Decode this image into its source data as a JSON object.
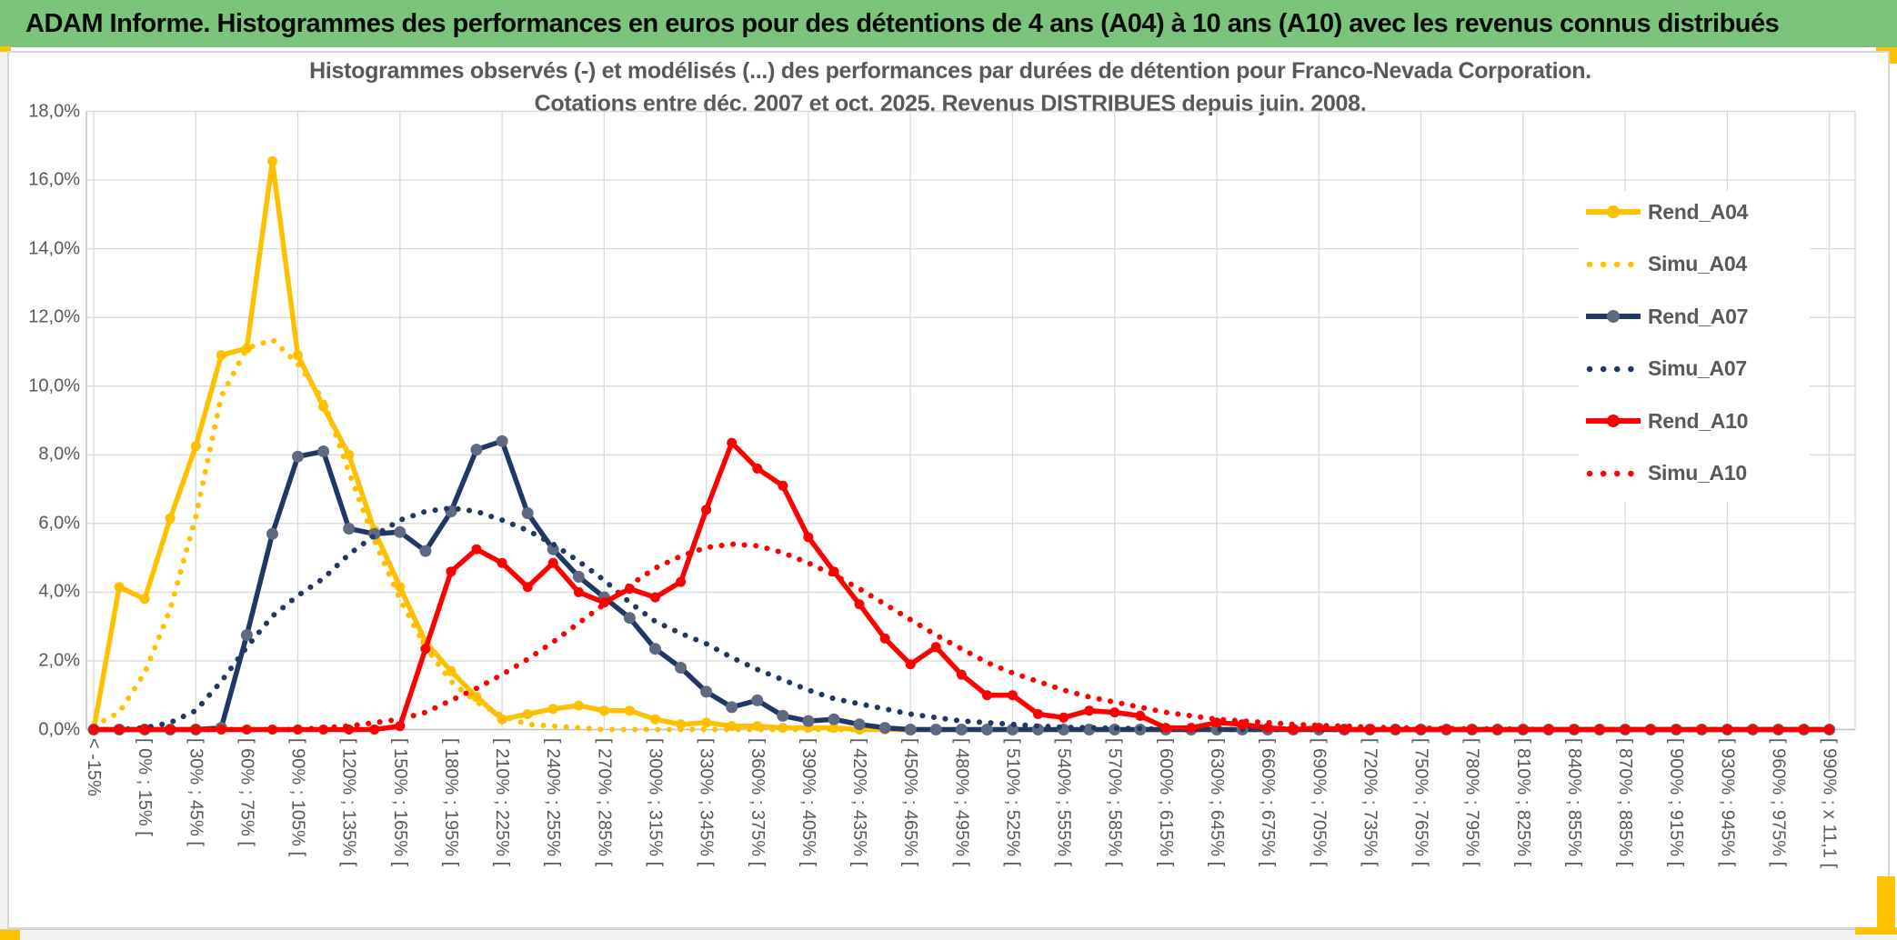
{
  "header": {
    "title": "ADAM Informe. Histogrammes des performances en euros pour des détentions de 4 ans (A04) à 10 ans (A10) avec les revenus connus distribués",
    "bar_color": "#7BC47C",
    "accent_color": "#FFC000"
  },
  "chart": {
    "title_line1": "Histogrammes observés (-) et modélisés (...) des performances par durées de détention pour Franco-Nevada Corporation.",
    "title_line2": "Cotations entre déc. 2007 et oct. 2025. Revenus DISTRIBUES depuis juin. 2008.",
    "text_color": "#595959",
    "grid_color": "#D9D9D9"
  },
  "chart_data": {
    "type": "line",
    "title": "Histogrammes observés (-) et modélisés (...) des performances par durées de détention pour Franco-Nevada Corporation. Cotations entre déc. 2007 et oct. 2025. Revenus DISTRIBUES depuis juin. 2008.",
    "xlabel": "",
    "ylabel": "",
    "ylim": [
      0,
      18
    ],
    "y_tick_step_pct": 2,
    "grid": true,
    "legend_position": "inside-top-right",
    "y_tick_labels": [
      "0,0%",
      "2,0%",
      "4,0%",
      "6,0%",
      "8,0%",
      "10,0%",
      "12,0%",
      "14,0%",
      "16,0%",
      "18,0%"
    ],
    "x_tick_labels": [
      "< -15%",
      "[ 0% ; 15% [",
      "[ 30% ; 45% [",
      "[ 60% ; 75% [",
      "[ 90% ; 105% [",
      "[ 120% ; 135% [",
      "[ 150% ; 165% [",
      "[ 180% ; 195% [",
      "[ 210% ; 225% [",
      "[ 240% ; 255% [",
      "[ 270% ; 285% [",
      "[ 300% ; 315% [",
      "[ 330% ; 345% [",
      "[ 360% ; 375% [",
      "[ 390% ; 405% [",
      "[ 420% ; 435% [",
      "[ 450% ; 465% [",
      "[ 480% ; 495% [",
      "[ 510% ; 525% [",
      "[ 540% ; 555% [",
      "[ 570% ; 585% [",
      "[ 600% ; 615% [",
      "[ 630% ; 645% [",
      "[ 660% ; 675% [",
      "[ 690% ; 705% [",
      "[ 720% ; 735% [",
      "[ 750% ; 765% [",
      "[ 780% ; 795% [",
      "[ 810% ; 825% [",
      "[ 840% ; 855% [",
      "[ 870% ; 885% [",
      "[ 900% ; 915% [",
      "[ 930% ; 945% [",
      "[ 960% ; 975% [",
      "[ 990% ; x 11,1 ["
    ],
    "x_labels_every_other_bin": true,
    "n_bins": 69,
    "series": [
      {
        "name": "Rend_A04",
        "style": "solid",
        "color": "#FFC000",
        "marker_color": "#FFC000",
        "values": [
          0,
          4.15,
          3.8,
          6.15,
          8.25,
          10.9,
          11.1,
          16.55,
          10.9,
          9.4,
          8.0,
          5.8,
          4.15,
          2.55,
          1.7,
          0.95,
          0.3,
          0.45,
          0.6,
          0.7,
          0.55,
          0.55,
          0.3,
          0.15,
          0.2,
          0.1,
          0.1,
          0.05,
          0.05,
          0.05,
          0,
          0,
          0,
          0,
          0,
          0,
          0,
          0,
          0,
          0,
          0,
          0,
          0,
          0,
          0,
          0,
          0,
          0,
          0,
          0,
          0,
          0,
          0,
          0,
          0,
          0,
          0,
          0,
          0,
          0,
          0,
          0,
          0,
          0,
          0,
          0,
          0,
          0,
          0
        ]
      },
      {
        "name": "Simu_A04",
        "style": "dotted",
        "color": "#FFC000",
        "values": [
          0.1,
          0.5,
          1.65,
          3.5,
          6.2,
          9.7,
          11.1,
          11.35,
          10.65,
          9.6,
          7.5,
          5.5,
          3.8,
          2.4,
          1.4,
          0.8,
          0.4,
          0.15,
          0.1,
          0.05,
          0,
          0,
          0,
          0,
          0,
          0,
          0,
          0,
          0,
          0,
          0,
          0,
          0,
          0,
          0,
          0,
          0,
          0,
          0,
          0,
          0,
          0,
          0,
          0,
          0,
          0,
          0,
          0,
          0,
          0,
          0,
          0,
          0,
          0,
          0,
          0,
          0,
          0,
          0,
          0,
          0,
          0,
          0,
          0,
          0,
          0,
          0,
          0,
          0
        ]
      },
      {
        "name": "Rend_A07",
        "style": "solid",
        "color": "#1F3864",
        "marker_color": "#5E6A82",
        "values": [
          0,
          0,
          0,
          0,
          0,
          0.05,
          2.75,
          5.7,
          7.95,
          8.1,
          5.85,
          5.7,
          5.75,
          5.2,
          6.35,
          8.15,
          8.4,
          6.3,
          5.25,
          4.45,
          3.85,
          3.25,
          2.35,
          1.8,
          1.1,
          0.65,
          0.85,
          0.4,
          0.25,
          0.3,
          0.15,
          0.05,
          0,
          0,
          0,
          0,
          0,
          0,
          0,
          0,
          0,
          0,
          0,
          0,
          0,
          0,
          0,
          0,
          0,
          0,
          0,
          0,
          0,
          0,
          0,
          0,
          0,
          0,
          0,
          0,
          0,
          0,
          0,
          0,
          0,
          0,
          0,
          0,
          0
        ]
      },
      {
        "name": "Simu_A07",
        "style": "dotted",
        "color": "#1F3864",
        "values": [
          0,
          0,
          0.05,
          0.2,
          0.55,
          1.4,
          2.4,
          3.3,
          3.9,
          4.4,
          5.1,
          5.65,
          6.1,
          6.35,
          6.45,
          6.35,
          6.1,
          5.8,
          5.4,
          4.9,
          4.35,
          3.7,
          3.15,
          2.8,
          2.5,
          2.1,
          1.75,
          1.45,
          1.15,
          0.9,
          0.75,
          0.6,
          0.45,
          0.35,
          0.25,
          0.2,
          0.15,
          0.1,
          0.07,
          0.05,
          0.04,
          0.03,
          0,
          0,
          0,
          0,
          0,
          0,
          0,
          0,
          0,
          0,
          0,
          0,
          0,
          0,
          0,
          0,
          0,
          0,
          0,
          0,
          0,
          0,
          0,
          0,
          0,
          0,
          0
        ]
      },
      {
        "name": "Rend_A10",
        "style": "solid",
        "color": "#FF0000",
        "marker_color": "#FF0000",
        "values": [
          0,
          0,
          0,
          0,
          0,
          0,
          0,
          0,
          0,
          0,
          0,
          0,
          0.1,
          2.35,
          4.6,
          5.25,
          4.85,
          4.15,
          4.85,
          4.0,
          3.7,
          4.1,
          3.85,
          4.3,
          6.4,
          8.35,
          7.6,
          7.1,
          5.6,
          4.6,
          3.65,
          2.65,
          1.9,
          2.4,
          1.6,
          1.0,
          1.0,
          0.45,
          0.35,
          0.55,
          0.5,
          0.4,
          0.05,
          0.05,
          0.2,
          0.15,
          0.05,
          0,
          0.05,
          0,
          0,
          0,
          0,
          0,
          0,
          0,
          0,
          0,
          0,
          0,
          0,
          0,
          0,
          0,
          0,
          0,
          0,
          0,
          0
        ]
      },
      {
        "name": "Simu_A10",
        "style": "dotted",
        "color": "#FF0000",
        "values": [
          0,
          0,
          0,
          0,
          0,
          0,
          0,
          0,
          0,
          0.05,
          0.1,
          0.2,
          0.3,
          0.5,
          0.85,
          1.2,
          1.6,
          2.05,
          2.55,
          3.1,
          3.65,
          4.2,
          4.7,
          5.05,
          5.3,
          5.4,
          5.35,
          5.15,
          4.85,
          4.5,
          4.1,
          3.65,
          3.2,
          2.75,
          2.35,
          1.95,
          1.65,
          1.4,
          1.15,
          0.95,
          0.8,
          0.65,
          0.5,
          0.4,
          0.3,
          0.25,
          0.2,
          0.15,
          0.12,
          0.1,
          0.07,
          0.05,
          0.04,
          0.03,
          0.02,
          0.02,
          0.01,
          0,
          0,
          0,
          0,
          0,
          0,
          0,
          0,
          0,
          0,
          0,
          0
        ]
      }
    ]
  }
}
